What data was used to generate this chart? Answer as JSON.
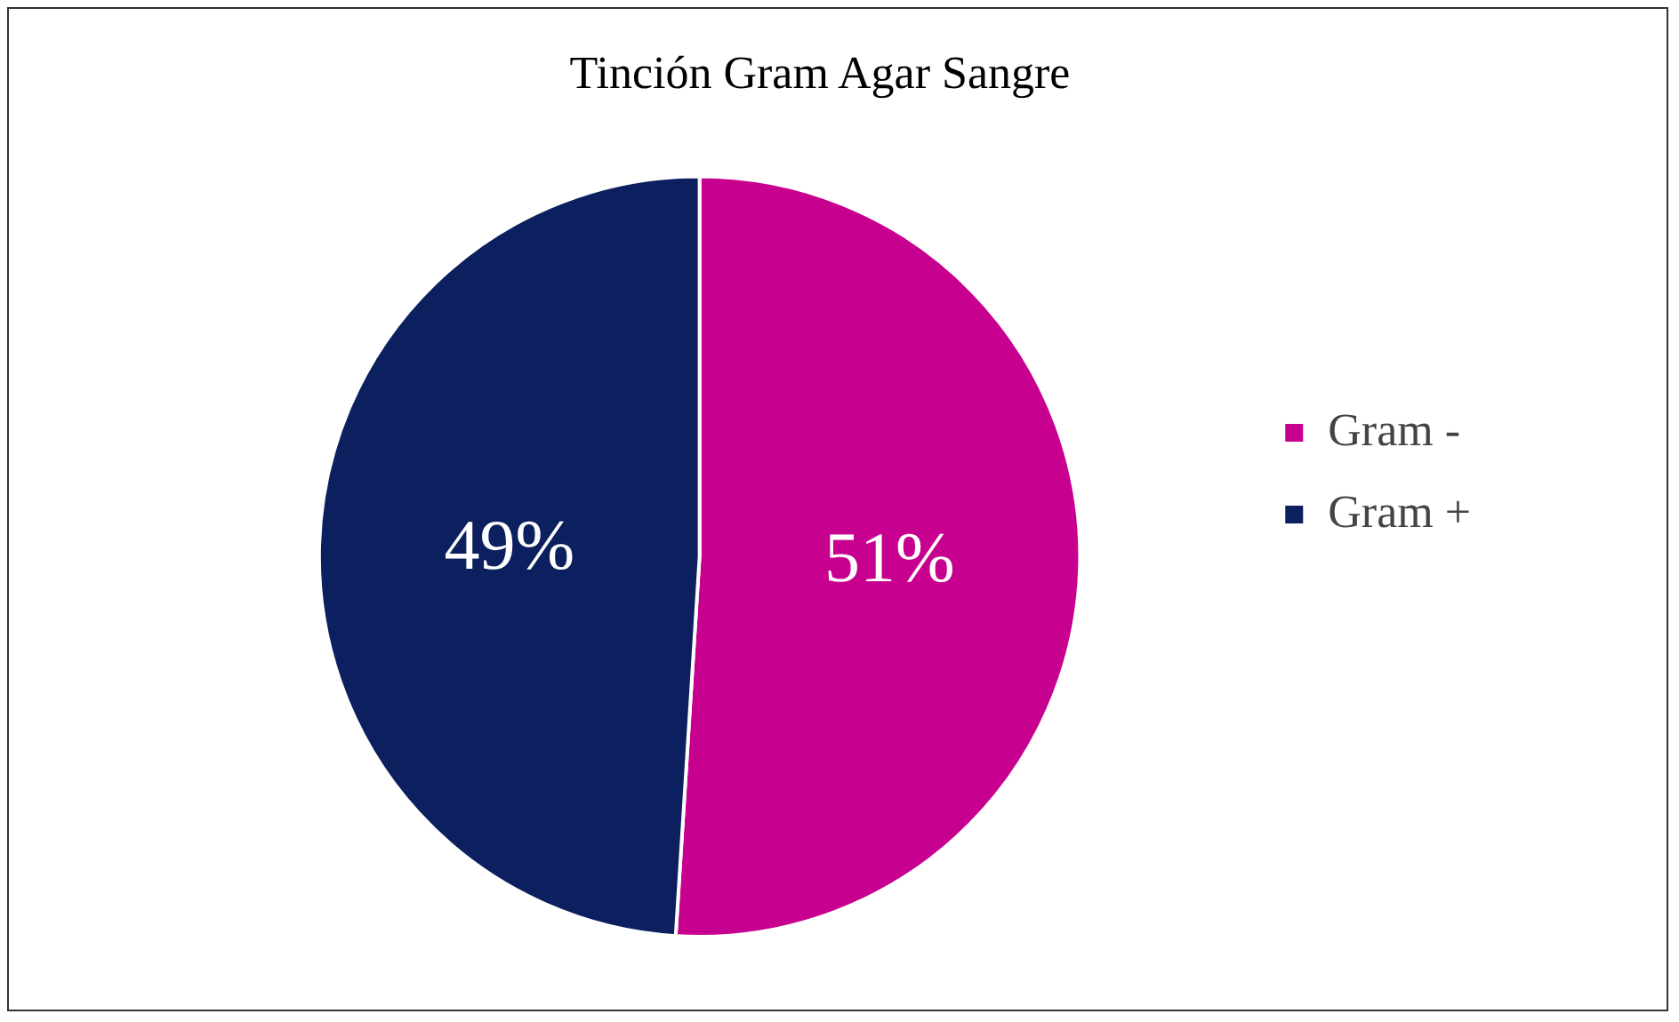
{
  "chart_data": {
    "type": "pie",
    "title": "Tinción Gram Agar Sangre",
    "categories": [
      "Gram -",
      "Gram +"
    ],
    "values": [
      51,
      49
    ],
    "colors": [
      "#c8008f",
      "#0c1f5e"
    ],
    "value_labels": [
      "51%",
      "49%"
    ],
    "legend": "right"
  }
}
